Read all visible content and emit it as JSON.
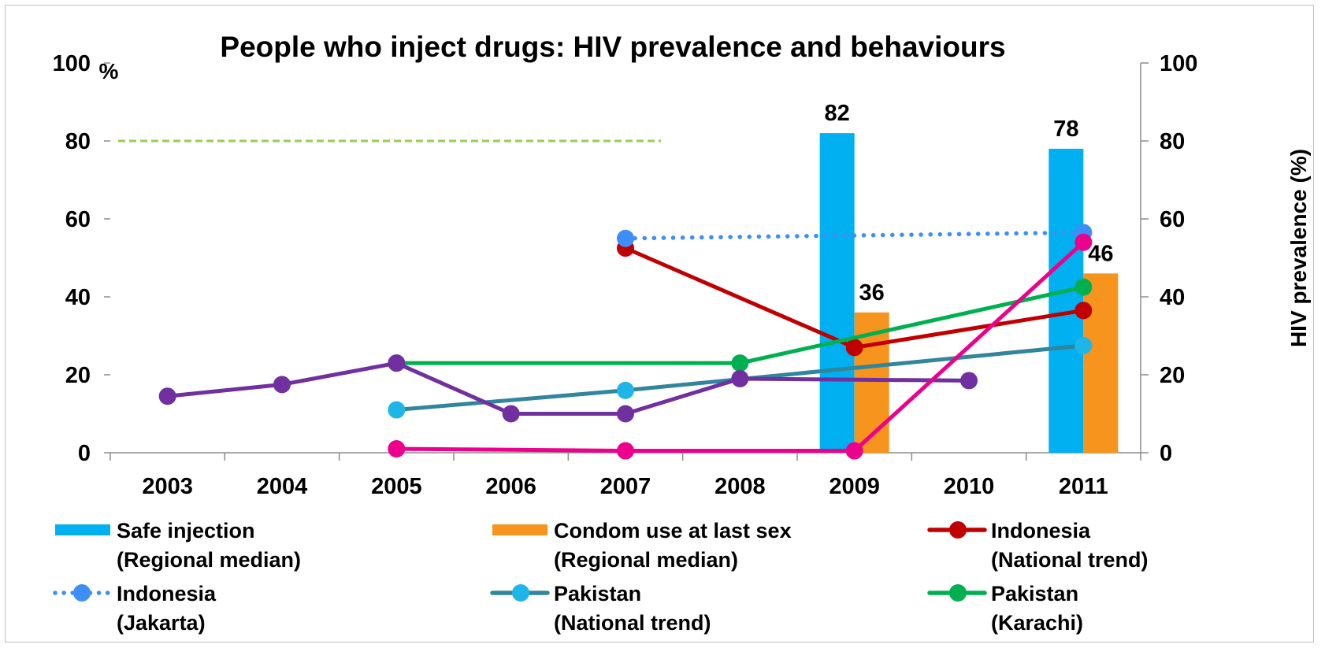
{
  "chart_data": {
    "type": "bar+line",
    "title": "People who inject drugs: HIV prevalence and behaviours",
    "left_axis": {
      "unit_label": "%",
      "ylim": [
        0,
        100
      ],
      "ticks": [
        "0",
        "20",
        "40",
        "60",
        "80",
        "100"
      ]
    },
    "right_axis": {
      "label": "HIV prevalence (%)",
      "ylim": [
        0,
        100
      ],
      "ticks": [
        "0",
        "20",
        "40",
        "60",
        "80",
        "100"
      ]
    },
    "categories": [
      "2003",
      "2004",
      "2005",
      "2006",
      "2007",
      "2008",
      "2009",
      "2010",
      "2011"
    ],
    "reference_line": {
      "value": 80,
      "x_from": "2003",
      "x_to": "2007",
      "style": "dashed",
      "color": "#92d050"
    },
    "bar_series": [
      {
        "name": "Safe injection (Regional median)",
        "color": "#00b0f0",
        "points": [
          {
            "x": "2009",
            "y": 82
          },
          {
            "x": "2011",
            "y": 78
          }
        ],
        "labels": [
          "82",
          "78"
        ]
      },
      {
        "name": "Condom use at last sex (Regional median)",
        "color": "#f7941d",
        "points": [
          {
            "x": "2009",
            "y": 36
          },
          {
            "x": "2011",
            "y": 46
          }
        ],
        "labels": [
          "36",
          "46"
        ]
      }
    ],
    "line_series": [
      {
        "name": "Indonesia (National trend)",
        "color": "#c00000",
        "dotted": false,
        "points": [
          {
            "x": "2007",
            "y": 52.5
          },
          {
            "x": "2009",
            "y": 27
          },
          {
            "x": "2011",
            "y": 36.5
          }
        ]
      },
      {
        "name": "Indonesia (Jakarta)",
        "color": "#3e8ef7",
        "dotted": true,
        "points": [
          {
            "x": "2007",
            "y": 55
          },
          {
            "x": "2011",
            "y": 56.5
          }
        ]
      },
      {
        "name": "Pakistan (National trend)",
        "color": "#31859c",
        "marker_color": "#1fb5e8",
        "dotted": false,
        "points": [
          {
            "x": "2005",
            "y": 11
          },
          {
            "x": "2007",
            "y": 16
          },
          {
            "x": "2011",
            "y": 27.5
          }
        ]
      },
      {
        "name": "Pakistan (Karachi)",
        "color": "#00b050",
        "dotted": false,
        "points": [
          {
            "x": "2005",
            "y": 23
          },
          {
            "x": "2008",
            "y": 23
          },
          {
            "x": "2011",
            "y": 42.5
          }
        ]
      },
      {
        "name": "",
        "color": "#7030a0",
        "dotted": false,
        "points": [
          {
            "x": "2003",
            "y": 14.5
          },
          {
            "x": "2004",
            "y": 17.5
          },
          {
            "x": "2005",
            "y": 23
          },
          {
            "x": "2006",
            "y": 10
          },
          {
            "x": "2007",
            "y": 10
          },
          {
            "x": "2008",
            "y": 19
          },
          {
            "x": "2010",
            "y": 18.5
          }
        ]
      },
      {
        "name": "",
        "color": "#ec008c",
        "dotted": false,
        "points": [
          {
            "x": "2005",
            "y": 1
          },
          {
            "x": "2007",
            "y": 0.5
          },
          {
            "x": "2009",
            "y": 0.5
          },
          {
            "x": "2011",
            "y": 54
          }
        ]
      }
    ]
  },
  "legend": [
    {
      "line1": "Safe injection",
      "line2": "(Regional median)",
      "swatch": "bar",
      "color": "#00b0f0"
    },
    {
      "line1": "Condom use at last sex",
      "line2": "(Regional median)",
      "swatch": "bar",
      "color": "#f7941d"
    },
    {
      "line1": "Indonesia",
      "line2": "(National trend)",
      "swatch": "line",
      "color": "#c00000",
      "marker_color": "#c00000"
    },
    {
      "line1": "Indonesia",
      "line2": "(Jakarta)",
      "swatch": "dotted",
      "color": "#3e8ef7",
      "marker_color": "#3e8ef7"
    },
    {
      "line1": "Pakistan",
      "line2": "(National trend)",
      "swatch": "line",
      "color": "#31859c",
      "marker_color": "#1fb5e8"
    },
    {
      "line1": "Pakistan",
      "line2": "(Karachi)",
      "swatch": "line",
      "color": "#00b050",
      "marker_color": "#00b050"
    }
  ]
}
